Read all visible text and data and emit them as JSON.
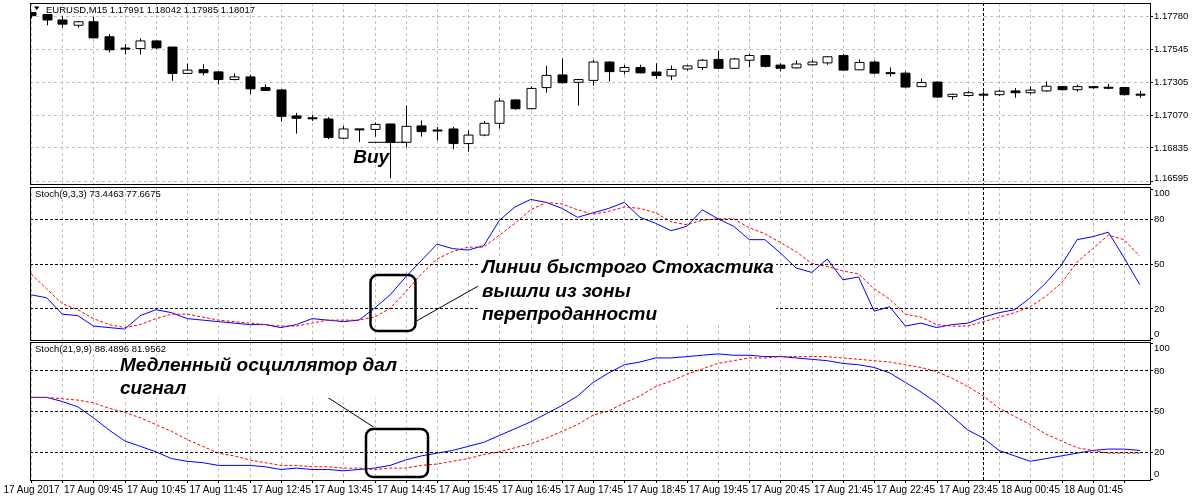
{
  "chart_data": [
    {
      "type": "candlestick",
      "title": "EURUSD,M15 1.17991 1.18042 1.17985 1.18017",
      "color": "#000000",
      "x": [
        "2017-08-17T08:45",
        "2017-08-17T09:00",
        "2017-08-17T09:15",
        "2017-08-17T09:30",
        "2017-08-17T09:45",
        "2017-08-17T10:00",
        "2017-08-17T10:15",
        "2017-08-17T10:30",
        "2017-08-17T10:45",
        "2017-08-17T11:00",
        "2017-08-17T11:15",
        "2017-08-17T11:30",
        "2017-08-17T11:45",
        "2017-08-17T12:00",
        "2017-08-17T12:15",
        "2017-08-17T12:30",
        "2017-08-17T12:45",
        "2017-08-17T13:00",
        "2017-08-17T13:15",
        "2017-08-17T13:30",
        "2017-08-17T13:45",
        "2017-08-17T14:00",
        "2017-08-17T14:15",
        "2017-08-17T14:30",
        "2017-08-17T14:45",
        "2017-08-17T15:00",
        "2017-08-17T15:15",
        "2017-08-17T15:30",
        "2017-08-17T15:45",
        "2017-08-17T16:00",
        "2017-08-17T16:15",
        "2017-08-17T16:30",
        "2017-08-17T16:45",
        "2017-08-17T17:00",
        "2017-08-17T17:15",
        "2017-08-17T17:30",
        "2017-08-17T17:45",
        "2017-08-17T18:00",
        "2017-08-17T18:15",
        "2017-08-17T18:30",
        "2017-08-17T18:45",
        "2017-08-17T19:00",
        "2017-08-17T19:15",
        "2017-08-17T19:30",
        "2017-08-17T19:45",
        "2017-08-17T20:00",
        "2017-08-17T20:15",
        "2017-08-17T20:30",
        "2017-08-17T20:45",
        "2017-08-17T21:00",
        "2017-08-17T21:15",
        "2017-08-17T21:30",
        "2017-08-17T21:45",
        "2017-08-17T22:00",
        "2017-08-17T22:15",
        "2017-08-17T22:30",
        "2017-08-17T22:45",
        "2017-08-17T23:00",
        "2017-08-17T23:15",
        "2017-08-17T23:30",
        "2017-08-17T23:45",
        "2017-08-18T00:00",
        "2017-08-18T00:15",
        "2017-08-18T00:30",
        "2017-08-18T00:45",
        "2017-08-18T01:00",
        "2017-08-18T01:15",
        "2017-08-18T01:30",
        "2017-08-18T01:45",
        "2017-08-18T02:00",
        "2017-08-18T02:15",
        "2017-08-18T02:30"
      ],
      "ohlc": [
        [
          1.17805,
          1.17805,
          1.17763,
          1.17783
        ],
        [
          1.17791,
          1.17794,
          1.17714,
          1.17752
        ],
        [
          1.17752,
          1.1778,
          1.17697,
          1.17722
        ],
        [
          1.17714,
          1.17744,
          1.17697,
          1.17739
        ],
        [
          1.17739,
          1.17774,
          1.17623,
          1.17623
        ],
        [
          1.17631,
          1.1765,
          1.17518,
          1.17537
        ],
        [
          1.17546,
          1.17579,
          1.17504,
          1.17546
        ],
        [
          1.17546,
          1.1762,
          1.17504,
          1.17601
        ],
        [
          1.17601,
          1.17606,
          1.17543,
          1.17551
        ],
        [
          1.17557,
          1.17557,
          1.17314,
          1.17367
        ],
        [
          1.17367,
          1.17438,
          1.17364,
          1.17391
        ],
        [
          1.17394,
          1.17433,
          1.17353,
          1.17372
        ],
        [
          1.17378,
          1.17383,
          1.17287,
          1.17323
        ],
        [
          1.17323,
          1.17367,
          1.17317,
          1.17342
        ],
        [
          1.17342,
          1.17358,
          1.17218,
          1.17256
        ],
        [
          1.17265,
          1.17289,
          1.1724,
          1.17245
        ],
        [
          1.17248,
          1.17254,
          1.17019,
          1.17058
        ],
        [
          1.17061,
          1.17083,
          1.16934,
          1.17044
        ],
        [
          1.17044,
          1.17069,
          1.17025,
          1.17044
        ],
        [
          1.17039,
          1.17052,
          1.16895,
          1.16906
        ],
        [
          1.16901,
          1.16989,
          1.16893,
          1.16967
        ],
        [
          1.16964,
          1.16964,
          1.16873,
          1.16964
        ],
        [
          1.16964,
          1.17014,
          1.16912,
          1.17
        ],
        [
          1.17003,
          1.17003,
          1.16612,
          1.16871
        ],
        [
          1.16871,
          1.17135,
          1.16835,
          1.16986
        ],
        [
          1.16989,
          1.17028,
          1.16912,
          1.16948
        ],
        [
          1.16956,
          1.16981,
          1.16884,
          1.16956
        ],
        [
          1.16967,
          1.16981,
          1.16821,
          1.16862
        ],
        [
          1.16862,
          1.16956,
          1.16804,
          1.16923
        ],
        [
          1.16923,
          1.17025,
          1.16915,
          1.17008
        ],
        [
          1.17008,
          1.1719,
          1.1697,
          1.17168
        ],
        [
          1.17176,
          1.17182,
          1.17105,
          1.17113
        ],
        [
          1.17113,
          1.17273,
          1.17108,
          1.17259
        ],
        [
          1.17265,
          1.17422,
          1.17229,
          1.17353
        ],
        [
          1.17356,
          1.17474,
          1.17292,
          1.173
        ],
        [
          1.17303,
          1.17328,
          1.17135,
          1.17323
        ],
        [
          1.17317,
          1.17463,
          1.17278,
          1.17449
        ],
        [
          1.17449,
          1.17455,
          1.17309,
          1.1738
        ],
        [
          1.17382,
          1.17429,
          1.1736,
          1.1741
        ],
        [
          1.1741,
          1.17429,
          1.17369,
          1.17371
        ],
        [
          1.17377,
          1.1744,
          1.17327,
          1.17352
        ],
        [
          1.17349,
          1.17424,
          1.17319,
          1.17396
        ],
        [
          1.17399,
          1.17429,
          1.17388,
          1.17421
        ],
        [
          1.1741,
          1.17471,
          1.17391,
          1.17462
        ],
        [
          1.17468,
          1.17531,
          1.17399,
          1.17404
        ],
        [
          1.17404,
          1.17479,
          1.17402,
          1.17471
        ],
        [
          1.17462,
          1.17509,
          1.1741,
          1.17496
        ],
        [
          1.17496,
          1.17498,
          1.1741,
          1.17418
        ],
        [
          1.17427,
          1.1744,
          1.17382,
          1.17404
        ],
        [
          1.17407,
          1.1746,
          1.17402,
          1.17435
        ],
        [
          1.17429,
          1.17465,
          1.17424,
          1.17449
        ],
        [
          1.17443,
          1.17493,
          1.17429,
          1.17487
        ],
        [
          1.17496,
          1.17507,
          1.17391,
          1.17391
        ],
        [
          1.17393,
          1.17468,
          1.17391,
          1.17446
        ],
        [
          1.17449,
          1.1746,
          1.1736,
          1.17369
        ],
        [
          1.17369,
          1.1741,
          1.17344,
          1.17369
        ],
        [
          1.17369,
          1.17382,
          1.17264,
          1.17269
        ],
        [
          1.17272,
          1.1733,
          1.17269,
          1.17302
        ],
        [
          1.17305,
          1.17308,
          1.17192,
          1.17197
        ],
        [
          1.172,
          1.17222,
          1.17178,
          1.17217
        ],
        [
          1.17208,
          1.17241,
          1.172,
          1.17228
        ],
        [
          1.17214,
          1.17236,
          1.17178,
          1.17214
        ],
        [
          1.17214,
          1.17247,
          1.17203,
          1.17239
        ],
        [
          1.17241,
          1.17261,
          1.17192,
          1.17228
        ],
        [
          1.17228,
          1.17275,
          1.17217,
          1.17247
        ],
        [
          1.17241,
          1.1731,
          1.17233,
          1.17275
        ],
        [
          1.17272,
          1.17277,
          1.17244,
          1.1725
        ],
        [
          1.1725,
          1.17286,
          1.17236,
          1.17272
        ],
        [
          1.17272,
          1.17277,
          1.17258,
          1.17264
        ],
        [
          1.17264,
          1.17291,
          1.17253,
          1.17264
        ],
        [
          1.17266,
          1.17269,
          1.17208,
          1.17214
        ],
        [
          1.17214,
          1.17241,
          1.17192,
          1.17214
        ]
      ],
      "xlim": [
        "2017-08-17T08:44",
        "2017-08-18T02:40"
      ],
      "xticks": [
        "2017-08-17T08:45",
        "2017-08-17T09:15",
        "2017-08-17T09:45",
        "2017-08-17T10:15",
        "2017-08-17T10:45",
        "2017-08-17T11:15",
        "2017-08-17T11:45",
        "2017-08-17T12:15",
        "2017-08-17T12:45",
        "2017-08-17T13:15",
        "2017-08-17T13:45",
        "2017-08-17T14:15",
        "2017-08-17T14:45",
        "2017-08-17T15:15",
        "2017-08-17T15:45",
        "2017-08-17T16:15",
        "2017-08-17T16:45",
        "2017-08-17T17:15",
        "2017-08-17T17:45",
        "2017-08-17T18:15",
        "2017-08-17T18:45",
        "2017-08-17T19:15",
        "2017-08-17T19:45",
        "2017-08-17T20:15",
        "2017-08-17T20:45",
        "2017-08-17T21:15",
        "2017-08-17T21:45",
        "2017-08-17T22:15",
        "2017-08-17T22:45",
        "2017-08-17T23:15",
        "2017-08-17T23:45",
        "2017-08-18T00:15",
        "2017-08-18T00:45",
        "2017-08-18T01:15",
        "2017-08-18T01:45",
        "2017-08-18T02:15"
      ],
      "ylim": [
        1.16578,
        1.17867
      ],
      "yticks": [
        {
          "value": 1.1778,
          "label": "1.17780"
        },
        1.17545,
        1.17305,
        {
          "value": 1.1707,
          "label": "1.17070"
        },
        1.16835,
        1.16595
      ],
      "grid": true,
      "tick_labels": "y",
      "ref_lines": [
        {
          "axis": "x",
          "value": "2017-08-18T00:00",
          "color": "#000000",
          "line_style": "dashed"
        }
      ],
      "annotations": [
        {
          "text": "Buy",
          "x": "2017-08-17T14:30",
          "y": 1.16871
        }
      ]
    },
    {
      "type": "line",
      "title": "Stoch(9,3,3) 73.4463 77.6675",
      "x": [
        "2017-08-17T08:45",
        "2017-08-17T09:00",
        "2017-08-17T09:15",
        "2017-08-17T09:30",
        "2017-08-17T09:45",
        "2017-08-17T10:00",
        "2017-08-17T10:15",
        "2017-08-17T10:30",
        "2017-08-17T10:45",
        "2017-08-17T11:00",
        "2017-08-17T11:15",
        "2017-08-17T11:30",
        "2017-08-17T11:45",
        "2017-08-17T12:00",
        "2017-08-17T12:15",
        "2017-08-17T12:30",
        "2017-08-17T12:45",
        "2017-08-17T13:00",
        "2017-08-17T13:15",
        "2017-08-17T13:30",
        "2017-08-17T13:45",
        "2017-08-17T14:00",
        "2017-08-17T14:15",
        "2017-08-17T14:30",
        "2017-08-17T14:45",
        "2017-08-17T15:00",
        "2017-08-17T15:15",
        "2017-08-17T15:30",
        "2017-08-17T15:45",
        "2017-08-17T16:00",
        "2017-08-17T16:15",
        "2017-08-17T16:30",
        "2017-08-17T16:45",
        "2017-08-17T17:00",
        "2017-08-17T17:15",
        "2017-08-17T17:30",
        "2017-08-17T17:45",
        "2017-08-17T18:00",
        "2017-08-17T18:15",
        "2017-08-17T18:30",
        "2017-08-17T18:45",
        "2017-08-17T19:00",
        "2017-08-17T19:15",
        "2017-08-17T19:30",
        "2017-08-17T19:45",
        "2017-08-17T20:00",
        "2017-08-17T20:15",
        "2017-08-17T20:30",
        "2017-08-17T20:45",
        "2017-08-17T21:00",
        "2017-08-17T21:15",
        "2017-08-17T21:30",
        "2017-08-17T21:45",
        "2017-08-17T22:00",
        "2017-08-17T22:15",
        "2017-08-17T22:30",
        "2017-08-17T22:45",
        "2017-08-17T23:00",
        "2017-08-17T23:15",
        "2017-08-17T23:30",
        "2017-08-17T23:45",
        "2017-08-18T00:00",
        "2017-08-18T00:15",
        "2017-08-18T00:30",
        "2017-08-18T00:45",
        "2017-08-18T01:00",
        "2017-08-18T01:15",
        "2017-08-18T01:30",
        "2017-08-18T01:45",
        "2017-08-18T02:00",
        "2017-08-18T02:15",
        "2017-08-18T02:30"
      ],
      "series": [
        {
          "color": "#0000ff",
          "line_style": "solid",
          "values": [
            29,
            27,
            16,
            15,
            8,
            7,
            6,
            15,
            19,
            17,
            13,
            12,
            11,
            10,
            9,
            9,
            7,
            9,
            13,
            12,
            11,
            12,
            20,
            29,
            41,
            52,
            63,
            60,
            59,
            62,
            79,
            88,
            93,
            91,
            87,
            81,
            84,
            87,
            91,
            81,
            77,
            72,
            75,
            86,
            80,
            75,
            66,
            66,
            57,
            47,
            44,
            53,
            39,
            41,
            18,
            21,
            8,
            10,
            7,
            9,
            10,
            14,
            17,
            19,
            27,
            37,
            49,
            66,
            68,
            71,
            54,
            36
          ]
        },
        {
          "color": "#ff0000",
          "line_style": "dashed",
          "values": [
            43,
            33,
            23,
            19,
            13,
            9,
            7,
            9,
            13,
            16,
            16,
            14,
            12,
            11,
            10,
            9,
            8,
            8,
            10,
            12,
            12,
            12,
            14,
            20,
            31,
            43,
            53,
            58,
            61,
            61,
            69,
            77,
            86,
            91,
            90,
            86,
            83,
            85,
            88,
            87,
            84,
            78,
            76,
            79,
            80,
            80,
            74,
            70,
            64,
            58,
            50,
            48,
            45,
            43,
            33,
            26,
            16,
            14,
            9,
            8,
            8,
            11,
            14,
            17,
            21,
            28,
            37,
            51,
            60,
            69,
            66,
            55
          ]
        }
      ],
      "xlim": [
        "2017-08-17T08:44",
        "2017-08-18T02:40"
      ],
      "xticks": [
        "2017-08-17T08:45",
        "2017-08-17T09:15",
        "2017-08-17T09:45",
        "2017-08-17T10:15",
        "2017-08-17T10:45",
        "2017-08-17T11:15",
        "2017-08-17T11:45",
        "2017-08-17T12:15",
        "2017-08-17T12:45",
        "2017-08-17T13:15",
        "2017-08-17T13:45",
        "2017-08-17T14:15",
        "2017-08-17T14:45",
        "2017-08-17T15:15",
        "2017-08-17T15:45",
        "2017-08-17T16:15",
        "2017-08-17T16:45",
        "2017-08-17T17:15",
        "2017-08-17T17:45",
        "2017-08-17T18:15",
        "2017-08-17T18:45",
        "2017-08-17T19:15",
        "2017-08-17T19:45",
        "2017-08-17T20:15",
        "2017-08-17T20:45",
        "2017-08-17T21:15",
        "2017-08-17T21:45",
        "2017-08-17T22:15",
        "2017-08-17T22:45",
        "2017-08-17T23:15",
        "2017-08-17T23:45",
        "2017-08-18T00:15",
        "2017-08-18T00:45",
        "2017-08-18T01:15",
        "2017-08-18T01:45",
        "2017-08-18T02:15"
      ],
      "ylim": [
        0,
        100
      ],
      "yticks": [
        0,
        20,
        50,
        80,
        100
      ],
      "grid": "x",
      "tick_labels": "y",
      "ref_lines": [
        {
          "axis": "y",
          "value": 80,
          "color": "#000000",
          "line_style": "dashed"
        },
        {
          "axis": "y",
          "value": 50,
          "color": "#000000",
          "line_style": "dashed"
        },
        {
          "axis": "y",
          "value": 20,
          "color": "#000000",
          "line_style": "dashed"
        },
        {
          "axis": "x",
          "value": "2017-08-18T00:00",
          "color": "#000000",
          "line_style": "dashed"
        }
      ],
      "annotations": [
        "Линии быстрого Стохастика\nвышли из зоны\nперепроданности"
      ]
    },
    {
      "type": "line",
      "title": "Stoch(21,9,9) 88.4896 81.9562",
      "x": [
        "2017-08-17T08:45",
        "2017-08-17T09:00",
        "2017-08-17T09:15",
        "2017-08-17T09:30",
        "2017-08-17T09:45",
        "2017-08-17T10:00",
        "2017-08-17T10:15",
        "2017-08-17T10:30",
        "2017-08-17T10:45",
        "2017-08-17T11:00",
        "2017-08-17T11:15",
        "2017-08-17T11:30",
        "2017-08-17T11:45",
        "2017-08-17T12:00",
        "2017-08-17T12:15",
        "2017-08-17T12:30",
        "2017-08-17T12:45",
        "2017-08-17T13:00",
        "2017-08-17T13:15",
        "2017-08-17T13:30",
        "2017-08-17T13:45",
        "2017-08-17T14:00",
        "2017-08-17T14:15",
        "2017-08-17T14:30",
        "2017-08-17T14:45",
        "2017-08-17T15:00",
        "2017-08-17T15:15",
        "2017-08-17T15:30",
        "2017-08-17T15:45",
        "2017-08-17T16:00",
        "2017-08-17T16:15",
        "2017-08-17T16:30",
        "2017-08-17T16:45",
        "2017-08-17T17:00",
        "2017-08-17T17:15",
        "2017-08-17T17:30",
        "2017-08-17T17:45",
        "2017-08-17T18:00",
        "2017-08-17T18:15",
        "2017-08-17T18:30",
        "2017-08-17T18:45",
        "2017-08-17T19:00",
        "2017-08-17T19:15",
        "2017-08-17T19:30",
        "2017-08-17T19:45",
        "2017-08-17T20:00",
        "2017-08-17T20:15",
        "2017-08-17T20:30",
        "2017-08-17T20:45",
        "2017-08-17T21:00",
        "2017-08-17T21:15",
        "2017-08-17T21:30",
        "2017-08-17T21:45",
        "2017-08-17T22:00",
        "2017-08-17T22:15",
        "2017-08-17T22:30",
        "2017-08-17T22:45",
        "2017-08-17T23:00",
        "2017-08-17T23:15",
        "2017-08-17T23:30",
        "2017-08-17T23:45",
        "2017-08-18T00:00",
        "2017-08-18T00:15",
        "2017-08-18T00:30",
        "2017-08-18T00:45",
        "2017-08-18T01:00",
        "2017-08-18T01:15",
        "2017-08-18T01:30",
        "2017-08-18T01:45",
        "2017-08-18T02:00",
        "2017-08-18T02:15",
        "2017-08-18T02:30"
      ],
      "series": [
        {
          "color": "#0000ff",
          "line_style": "solid",
          "values": [
            60,
            60,
            57,
            53,
            45,
            36,
            28,
            24,
            20,
            15,
            13,
            12,
            10,
            10,
            10,
            9,
            7,
            8,
            7,
            7,
            6,
            7,
            8,
            10,
            14,
            17,
            19,
            21,
            24,
            27,
            32,
            37,
            42,
            48,
            54,
            61,
            71,
            78,
            84,
            86,
            89,
            89,
            90,
            91,
            92,
            91,
            91,
            90,
            90,
            89,
            88,
            87,
            85,
            84,
            82,
            78,
            71,
            64,
            56,
            46,
            36,
            30,
            21,
            17,
            13,
            15,
            17,
            19,
            21,
            22,
            22,
            21
          ]
        },
        {
          "color": "#ff0000",
          "line_style": "dashed",
          "values": [
            60,
            60,
            59,
            58,
            56,
            52,
            49,
            45,
            40,
            35,
            29,
            24,
            19,
            17,
            14,
            12,
            10,
            10,
            9,
            9,
            8,
            8,
            7,
            8,
            8,
            10,
            11,
            13,
            15,
            18,
            20,
            23,
            26,
            30,
            35,
            40,
            47,
            50,
            56,
            61,
            68,
            72,
            77,
            81,
            85,
            87,
            89,
            89,
            90,
            90,
            90,
            90,
            89,
            88,
            87,
            86,
            84,
            82,
            79,
            74,
            68,
            61,
            52,
            46,
            40,
            33,
            28,
            23,
            21,
            19,
            19,
            19
          ]
        }
      ],
      "xlim": [
        "2017-08-17T08:44",
        "2017-08-18T02:40"
      ],
      "xticks": [
        {
          "value": "2017-08-17T08:45",
          "label": "17 Aug 2017"
        },
        {
          "value": "2017-08-17T09:15",
          "label": null
        },
        {
          "value": "2017-08-17T09:45",
          "label": "17 Aug 09:45"
        },
        {
          "value": "2017-08-17T10:15",
          "label": null
        },
        {
          "value": "2017-08-17T10:45",
          "label": "17 Aug 10:45"
        },
        {
          "value": "2017-08-17T11:15",
          "label": null
        },
        {
          "value": "2017-08-17T11:45",
          "label": "17 Aug 11:45"
        },
        {
          "value": "2017-08-17T12:15",
          "label": null
        },
        {
          "value": "2017-08-17T12:45",
          "label": "17 Aug 12:45"
        },
        {
          "value": "2017-08-17T13:15",
          "label": null
        },
        {
          "value": "2017-08-17T13:45",
          "label": "17 Aug 13:45"
        },
        {
          "value": "2017-08-17T14:15",
          "label": null
        },
        {
          "value": "2017-08-17T14:45",
          "label": "17 Aug 14:45"
        },
        {
          "value": "2017-08-17T15:15",
          "label": null
        },
        {
          "value": "2017-08-17T15:45",
          "label": "17 Aug 15:45"
        },
        {
          "value": "2017-08-17T16:15",
          "label": null
        },
        {
          "value": "2017-08-17T16:45",
          "label": "17 Aug 16:45"
        },
        {
          "value": "2017-08-17T17:15",
          "label": null
        },
        {
          "value": "2017-08-17T17:45",
          "label": "17 Aug 17:45"
        },
        {
          "value": "2017-08-17T18:15",
          "label": null
        },
        {
          "value": "2017-08-17T18:45",
          "label": "17 Aug 18:45"
        },
        {
          "value": "2017-08-17T19:15",
          "label": null
        },
        {
          "value": "2017-08-17T19:45",
          "label": "17 Aug 19:45"
        },
        {
          "value": "2017-08-17T20:15",
          "label": null
        },
        {
          "value": "2017-08-17T20:45",
          "label": "17 Aug 20:45"
        },
        {
          "value": "2017-08-17T21:15",
          "label": null
        },
        {
          "value": "2017-08-17T21:45",
          "label": "17 Aug 21:45"
        },
        {
          "value": "2017-08-17T22:15",
          "label": null
        },
        {
          "value": "2017-08-17T22:45",
          "label": "17 Aug 22:45"
        },
        {
          "value": "2017-08-17T23:15",
          "label": null
        },
        {
          "value": "2017-08-17T23:45",
          "label": "17 Aug 23:45"
        },
        {
          "value": "2017-08-18T00:15",
          "label": null
        },
        {
          "value": "2017-08-18T00:45",
          "label": "18 Aug 00:45"
        },
        {
          "value": "2017-08-18T01:15",
          "label": null
        },
        {
          "value": "2017-08-18T01:45",
          "label": "18 Aug 01:45"
        },
        {
          "value": "2017-08-18T02:15",
          "label": null
        }
      ],
      "ylim": [
        0,
        100
      ],
      "yticks": [
        0,
        20,
        50,
        80,
        100
      ],
      "grid": "x",
      "ref_lines": [
        {
          "axis": "y",
          "value": 80,
          "color": "#000000",
          "line_style": "dashed"
        },
        {
          "axis": "y",
          "value": 50,
          "color": "#000000",
          "line_style": "dashed"
        },
        {
          "axis": "y",
          "value": 20,
          "color": "#000000",
          "line_style": "dashed"
        },
        {
          "axis": "x",
          "value": "2017-08-18T00:00",
          "color": "#000000",
          "line_style": "dashed"
        }
      ],
      "annotations": [
        "Медленный осциллятор дал\nсигнал"
      ]
    }
  ]
}
